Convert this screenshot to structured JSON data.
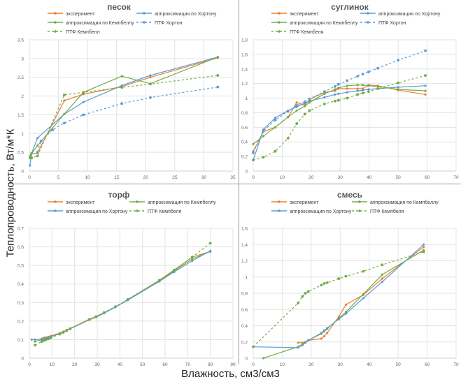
{
  "figure": {
    "ylabel": "Теплопроводность, Вт/м*К",
    "xlabel": "Влажность, см3/см3"
  },
  "colors": {
    "experiment": "#ed7d31",
    "approx_horton": "#5b9bd5",
    "approx_campbell": "#70ad47",
    "ptf_horton": "#5b9bd5",
    "ptf_campbell": "#70ad47",
    "grid": "#e3e3e3",
    "tick_text": "#666666",
    "title_text": "#595959"
  },
  "chart_data": [
    {
      "type": "line",
      "title": "песок",
      "xlim": [
        0,
        35
      ],
      "xticks": [
        0,
        5,
        10,
        15,
        20,
        25,
        30,
        35
      ],
      "ylim": [
        0,
        3.5
      ],
      "yticks": [
        0,
        0.5,
        1,
        1.5,
        2,
        2.5,
        3,
        3.5
      ],
      "ytick_labels": [
        "0",
        "0.5",
        "1",
        "1.5",
        "2",
        "2.5",
        "3",
        "3.5"
      ],
      "grid": true,
      "legend": [
        {
          "label": "эксперимент",
          "key": "experiment",
          "dashed": false
        },
        {
          "label": "аппроксимация по Хортону",
          "key": "approx_horton",
          "dashed": false
        },
        {
          "label": "аппроксимация по Кемпбеллу",
          "key": "approx_campbell",
          "dashed": false
        },
        {
          "label": "ПТФ Хортон",
          "key": "ptf_horton",
          "dashed": true
        },
        {
          "label": "ПТФ Кемпбелл",
          "key": "ptf_campbell",
          "dashed": true
        }
      ],
      "series": [
        {
          "key": "experiment",
          "name": "эксперимент",
          "dashed": false,
          "x": [
            0.1,
            0.3,
            1.4,
            6.0,
            9.3,
            15.9,
            20.8,
            32.4
          ],
          "y": [
            0.4,
            0.45,
            0.48,
            1.88,
            2.05,
            2.25,
            2.5,
            3.02
          ]
        },
        {
          "key": "approx_horton",
          "name": "аппроксимация по Хортону",
          "dashed": false,
          "x": [
            0.1,
            0.4,
            1.4,
            6.0,
            9.3,
            15.9,
            20.8,
            32.4
          ],
          "y": [
            0.15,
            0.48,
            0.88,
            1.52,
            1.84,
            2.28,
            2.55,
            3.04
          ]
        },
        {
          "key": "approx_campbell",
          "name": "аппроксимация по Кемпбеллу",
          "dashed": false,
          "x": [
            0.1,
            0.3,
            1.4,
            6.0,
            9.3,
            15.9,
            20.8,
            32.4
          ],
          "y": [
            0.35,
            0.45,
            0.68,
            1.52,
            2.1,
            2.53,
            2.33,
            3.04
          ]
        },
        {
          "key": "ptf_horton",
          "name": "ПТФ Хортон",
          "dashed": true,
          "x": [
            1.4,
            2.0,
            4.0,
            6.0,
            9.3,
            15.9,
            20.8,
            32.4
          ],
          "y": [
            0.5,
            0.8,
            1.1,
            1.28,
            1.5,
            1.8,
            1.96,
            2.24
          ]
        },
        {
          "key": "ptf_campbell",
          "name": "ПТФ Кемпбелл",
          "dashed": true,
          "x": [
            0.1,
            0.4,
            1.4,
            6.0,
            9.3,
            15.9,
            20.8,
            32.4
          ],
          "y": [
            0.35,
            0.35,
            0.4,
            2.03,
            2.1,
            2.23,
            2.32,
            2.55
          ]
        }
      ]
    },
    {
      "type": "line",
      "title": "суглинок",
      "xlim": [
        0,
        70
      ],
      "xticks": [
        0,
        10,
        20,
        30,
        40,
        50,
        60,
        70
      ],
      "ylim": [
        0,
        1.8
      ],
      "yticks": [
        0,
        0.2,
        0.4,
        0.6,
        0.8,
        1,
        1.2,
        1.4,
        1.6,
        1.8
      ],
      "ytick_labels": [
        "0",
        "0.2",
        "0.4",
        "0.6",
        "0.8",
        "1",
        "1.2",
        "1.4",
        "1.6",
        "1.8"
      ],
      "grid": true,
      "legend": [
        {
          "label": "эксперимент",
          "key": "experiment",
          "dashed": false
        },
        {
          "label": "аппроксимация по Хортону",
          "key": "approx_horton",
          "dashed": false
        },
        {
          "label": "аппроксимация по Кемпбеллу",
          "key": "approx_campbell",
          "dashed": false
        },
        {
          "label": "ПТФ Хортон",
          "key": "ptf_horton",
          "dashed": true
        },
        {
          "label": "ПТФ Кемпбеля",
          "key": "ptf_campbell",
          "dashed": true
        }
      ],
      "series": [
        {
          "key": "experiment",
          "name": "эксперимент",
          "dashed": false,
          "x": [
            0,
            3.5,
            7.6,
            12,
            15,
            17.8,
            19.4,
            24.6,
            28.2,
            29.4,
            32.4,
            36,
            37.8,
            39.8,
            43,
            50,
            59.4
          ],
          "y": [
            0.27,
            0.54,
            0.6,
            0.74,
            0.94,
            0.9,
            0.98,
            1.08,
            1.1,
            1.13,
            1.13,
            1.13,
            1.13,
            1.18,
            1.17,
            1.11,
            1.05
          ]
        },
        {
          "key": "approx_horton",
          "name": "аппроксимация по Хортону",
          "dashed": false,
          "x": [
            0,
            3.5,
            7.6,
            12,
            15,
            17.8,
            19.4,
            24.6,
            28.2,
            29.4,
            32.4,
            36,
            37.8,
            39.8,
            43,
            50,
            59.4
          ],
          "y": [
            0.15,
            0.57,
            0.73,
            0.83,
            0.88,
            0.93,
            0.96,
            1.01,
            1.05,
            1.06,
            1.08,
            1.1,
            1.11,
            1.12,
            1.13,
            1.15,
            1.17
          ]
        },
        {
          "key": "approx_campbell",
          "name": "аппроксимация по Кемпбеллу",
          "dashed": false,
          "x": [
            0,
            3.5,
            7.6,
            12,
            15,
            17.8,
            19.4,
            24.6,
            28.2,
            29.4,
            32.4,
            36,
            37.8,
            39.8,
            43,
            50,
            59.4
          ],
          "y": [
            0.37,
            0.48,
            0.6,
            0.74,
            0.83,
            0.89,
            0.94,
            1.06,
            1.12,
            1.14,
            1.17,
            1.18,
            1.18,
            1.17,
            1.16,
            1.12,
            1.1
          ]
        },
        {
          "key": "ptf_horton",
          "name": "ПТФ Хортон",
          "dashed": true,
          "x": [
            0,
            3.5,
            7.6,
            12,
            15,
            17.8,
            19.4,
            24.6,
            28.2,
            29.4,
            32.4,
            36,
            37.8,
            39.8,
            43,
            50,
            59.4
          ],
          "y": [
            0.25,
            0.55,
            0.7,
            0.82,
            0.9,
            0.95,
            0.99,
            1.09,
            1.16,
            1.19,
            1.24,
            1.3,
            1.33,
            1.36,
            1.41,
            1.52,
            1.65
          ]
        },
        {
          "key": "ptf_campbell",
          "name": "ПТФ Кемпбеля",
          "dashed": true,
          "x": [
            0,
            3.5,
            7.6,
            12,
            15,
            17.8,
            19.4,
            24.6,
            28.2,
            29.4,
            32.4,
            36,
            37.8,
            39.8,
            43,
            50,
            59.4
          ],
          "y": [
            0.15,
            0.19,
            0.27,
            0.45,
            0.65,
            0.78,
            0.83,
            0.92,
            0.96,
            0.97,
            1.0,
            1.05,
            1.07,
            1.09,
            1.13,
            1.21,
            1.31
          ]
        }
      ]
    },
    {
      "type": "line",
      "title": "торф",
      "xlim": [
        0,
        90
      ],
      "xticks": [
        0,
        10,
        20,
        30,
        40,
        50,
        60,
        70,
        80,
        90
      ],
      "ylim": [
        0,
        0.7
      ],
      "yticks": [
        0,
        0.1,
        0.2,
        0.3,
        0.4,
        0.5,
        0.6,
        0.7
      ],
      "ytick_labels": [
        "0",
        "0.1",
        "0.2",
        "0.3",
        "0.4",
        "0.5",
        "0.6",
        "0.7"
      ],
      "grid": true,
      "legend": [
        {
          "label": "эксперимент",
          "key": "experiment",
          "dashed": false
        },
        {
          "label": "аппроксимация по Кемпбеллу",
          "key": "approx_campbell",
          "dashed": false
        },
        {
          "label": "аппроксимация по Хортону",
          "key": "approx_horton",
          "dashed": false
        },
        {
          "label": "ПТФ Кемпбеля",
          "key": "ptf_campbell",
          "dashed": true
        }
      ],
      "series": [
        {
          "key": "experiment",
          "name": "эксперимент",
          "dashed": false,
          "x": [
            5.5,
            6.5,
            7.5,
            8.5,
            9.5,
            13.5,
            15,
            16.5,
            18,
            26.5,
            29.5,
            33,
            38,
            43.5,
            57.5,
            64,
            72,
            80
          ],
          "y": [
            0.105,
            0.11,
            0.112,
            0.115,
            0.12,
            0.135,
            0.143,
            0.152,
            0.16,
            0.21,
            0.225,
            0.245,
            0.275,
            0.315,
            0.42,
            0.475,
            0.545,
            0.575
          ]
        },
        {
          "key": "approx_campbell",
          "name": "аппроксимация по Кемпбеллу",
          "dashed": false,
          "x": [
            2.5,
            5.5,
            6.5,
            7.5,
            8.5,
            9.5,
            13.5,
            15,
            16.5,
            18,
            26.5,
            29.5,
            33,
            38,
            43.5,
            57.5,
            64,
            72,
            80
          ],
          "y": [
            0.09,
            0.1,
            0.102,
            0.106,
            0.11,
            0.115,
            0.132,
            0.14,
            0.15,
            0.158,
            0.208,
            0.222,
            0.243,
            0.276,
            0.314,
            0.417,
            0.47,
            0.535,
            0.575
          ]
        },
        {
          "key": "approx_horton",
          "name": "аппроксимация по Хортону",
          "dashed": false,
          "x": [
            1,
            2.5,
            5.5,
            6.5,
            7.5,
            8.5,
            9.5,
            13.5,
            15,
            16.5,
            18,
            26.5,
            29.5,
            33,
            38,
            43.5,
            57.5,
            64,
            72,
            80
          ],
          "y": [
            0.1,
            0.1,
            0.102,
            0.105,
            0.108,
            0.112,
            0.116,
            0.133,
            0.141,
            0.15,
            0.158,
            0.207,
            0.221,
            0.242,
            0.275,
            0.313,
            0.414,
            0.465,
            0.525,
            0.578
          ]
        },
        {
          "key": "ptf_campbell",
          "name": "ПТФ Кемпбеля",
          "dashed": true,
          "x": [
            2.5,
            5.5,
            6.5,
            7.5,
            8.5,
            9.5,
            13.5,
            15,
            16.5,
            18,
            26.5,
            29.5,
            33,
            38,
            43.5,
            57.5,
            64,
            72,
            80
          ],
          "y": [
            0.07,
            0.09,
            0.095,
            0.1,
            0.105,
            0.11,
            0.13,
            0.139,
            0.148,
            0.157,
            0.208,
            0.224,
            0.246,
            0.278,
            0.317,
            0.42,
            0.475,
            0.545,
            0.62
          ]
        }
      ]
    },
    {
      "type": "line",
      "title": "смесь",
      "xlim": [
        0,
        70
      ],
      "xticks": [
        0,
        10,
        20,
        30,
        40,
        50,
        60,
        70
      ],
      "ylim": [
        0,
        1.6
      ],
      "yticks": [
        0,
        0.2,
        0.4,
        0.6,
        0.8,
        1,
        1.2,
        1.4,
        1.6
      ],
      "ytick_labels": [
        "0",
        "0.2",
        "0.4",
        "0.6",
        "0.8",
        "1",
        "1.2",
        "1.4",
        "1.6"
      ],
      "grid": true,
      "legend": [
        {
          "label": "эксперимент",
          "key": "experiment",
          "dashed": false
        },
        {
          "label": "аппроксимация по Кемпбеллу",
          "key": "approx_campbell",
          "dashed": false
        },
        {
          "label": "аппроксимация по Хортону",
          "key": "approx_horton",
          "dashed": false
        },
        {
          "label": "ПТФ Кемпбеля",
          "key": "ptf_campbell",
          "dashed": true
        }
      ],
      "series": [
        {
          "key": "experiment",
          "name": "эксперимент",
          "dashed": false,
          "x": [
            15.5,
            17,
            18,
            19,
            23.5,
            24.5,
            25.5,
            29.5,
            32,
            38,
            44.5,
            58.8
          ],
          "y": [
            0.19,
            0.19,
            0.2,
            0.22,
            0.24,
            0.27,
            0.31,
            0.51,
            0.66,
            0.78,
            0.98,
            1.37
          ]
        },
        {
          "key": "approx_campbell",
          "name": "аппроксимация по Кемпбеллу",
          "dashed": false,
          "x": [
            3.5,
            15.5,
            17,
            18,
            19,
            23.5,
            24.5,
            25.5,
            29.5,
            32,
            38,
            44.5,
            58.8
          ],
          "y": [
            0.0,
            0.14,
            0.17,
            0.19,
            0.22,
            0.3,
            0.33,
            0.36,
            0.49,
            0.57,
            0.79,
            1.03,
            1.33
          ]
        },
        {
          "key": "approx_horton",
          "name": "аппроксимация по Хортону",
          "dashed": false,
          "x": [
            0,
            15.5,
            17,
            18,
            19,
            23.5,
            24.5,
            25.5,
            29.5,
            32,
            38,
            44.5,
            58.8
          ],
          "y": [
            0.14,
            0.13,
            0.16,
            0.19,
            0.22,
            0.31,
            0.34,
            0.37,
            0.48,
            0.55,
            0.74,
            0.94,
            1.4
          ]
        },
        {
          "key": "ptf_campbell",
          "name": "ПТФ Кемпбеля",
          "dashed": true,
          "x": [
            0,
            15.5,
            17,
            18,
            19,
            23.5,
            24.5,
            25.5,
            29.5,
            32,
            38,
            44.5,
            58.8
          ],
          "y": [
            0.14,
            0.68,
            0.76,
            0.8,
            0.82,
            0.9,
            0.92,
            0.93,
            0.98,
            1.01,
            1.07,
            1.15,
            1.31
          ]
        }
      ]
    }
  ]
}
